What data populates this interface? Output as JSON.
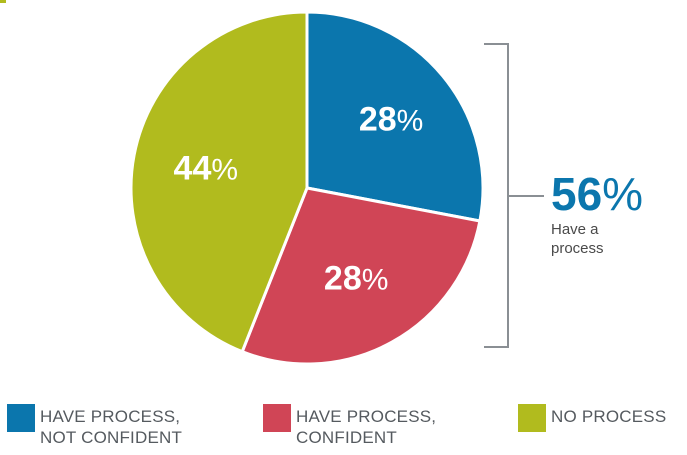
{
  "colors": {
    "blue": "#0b76ad",
    "red": "#d04556",
    "olive": "#b1bb1e",
    "bracket": "#8a8f94",
    "background": "#ffffff"
  },
  "chart_data": {
    "type": "pie",
    "title": "",
    "slices": [
      {
        "label": "HAVE PROCESS, NOT CONFIDENT",
        "value": 28,
        "color": "#0b76ad"
      },
      {
        "label": "HAVE PROCESS, CONFIDENT",
        "value": 28,
        "color": "#d04556"
      },
      {
        "label": "NO PROCESS",
        "value": 44,
        "color": "#b1bb1e"
      }
    ],
    "start_angle_degrees": 0,
    "direction": "clockwise",
    "percent_symbol": "%",
    "callout": {
      "value": "56",
      "unit": "%",
      "text": "Have a process",
      "spans": [
        "HAVE PROCESS, NOT CONFIDENT",
        "HAVE PROCESS, CONFIDENT"
      ]
    },
    "legend": {
      "placement": "bottom",
      "items": [
        {
          "label": "HAVE PROCESS,\nNOT CONFIDENT",
          "color": "#0b76ad"
        },
        {
          "label": "HAVE PROCESS,\nCONFIDENT",
          "color": "#d04556"
        },
        {
          "label": "NO PROCESS",
          "color": "#b1bb1e"
        }
      ]
    }
  }
}
